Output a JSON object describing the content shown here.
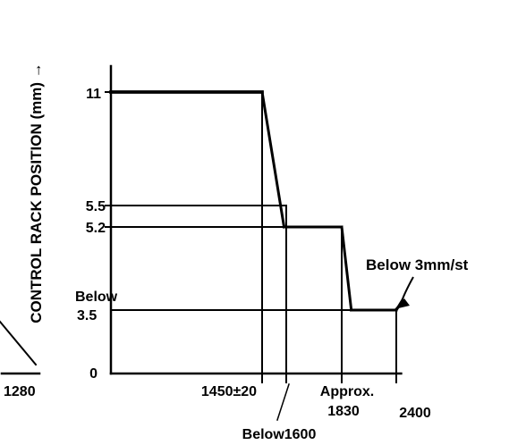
{
  "chart_data": {
    "type": "line",
    "title": "",
    "ylabel": "CONTROL RACK POSITION (mm) →",
    "xlabel": "",
    "y_tick_labels": [
      "11",
      "5.5",
      "5.2",
      "Below",
      "3.5",
      "0"
    ],
    "x_tick_labels": [
      "1280",
      "1450±20",
      "Below1600",
      "Approx.",
      "1830",
      "2400"
    ],
    "annotations": [
      "Below 3mm/st"
    ],
    "series": [
      {
        "values": [
          {
            "x": 0,
            "y": 11
          },
          {
            "x": 1450,
            "y": 11
          },
          {
            "x": 1550,
            "y": 5.2
          },
          {
            "x": 1830,
            "y": 5.2
          },
          {
            "x": 1930,
            "y": 3.5
          },
          {
            "x": 2400,
            "y": 3.5
          },
          {
            "x": 2425,
            "y": 3.7
          }
        ]
      }
    ],
    "reference_lines": [
      {
        "y": 5.5,
        "x_end": 1560
      },
      {
        "y": 5.2,
        "x_end": 1830
      },
      {
        "y": 3.5,
        "x_end": 2400
      },
      {
        "x": 1450,
        "y_end": 11
      },
      {
        "x": 1560,
        "y_end": 5.5
      },
      {
        "x": 1830,
        "y_end": 5.2
      },
      {
        "x": 2400,
        "y_end": 3.5
      }
    ],
    "partial_prior_curve_end_x": 1280,
    "xlim": [
      0,
      2500
    ],
    "ylim": [
      0,
      12
    ],
    "grid": false,
    "colors": {
      "line": "#000000",
      "text": "#000000",
      "background": "#ffffff"
    }
  }
}
